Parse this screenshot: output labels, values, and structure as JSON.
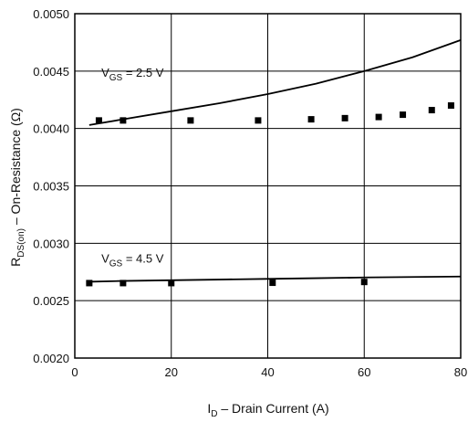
{
  "chart_data": {
    "type": "scatter",
    "xlabel": {
      "main": "I",
      "sub": "D",
      "rest": " – Drain Current (A)"
    },
    "ylabel": {
      "main": "R",
      "sub": "DS(on)",
      "rest": " – On-Resistance (Ω)"
    },
    "xlim": [
      0,
      80
    ],
    "ylim": [
      0.002,
      0.005
    ],
    "x_ticks": [
      "0",
      "20",
      "40",
      "60",
      "80"
    ],
    "y_ticks": [
      "0.0020",
      "0.0025",
      "0.0030",
      "0.0035",
      "0.0040",
      "0.0045",
      "0.0050"
    ],
    "grid": true,
    "annotations": [
      {
        "main": "V",
        "sub": "GS",
        "rest": " = 2.5 V",
        "x": 5.5,
        "y": 0.00445
      },
      {
        "main": "V",
        "sub": "GS",
        "rest": " = 4.5 V",
        "x": 5.5,
        "y": 0.00283
      }
    ],
    "series": [
      {
        "style": "line",
        "x": [
          3,
          10,
          20,
          30,
          40,
          50,
          60,
          70,
          80
        ],
        "y": [
          0.00403,
          0.00408,
          0.00415,
          0.00422,
          0.0043,
          0.00439,
          0.0045,
          0.00462,
          0.00477
        ]
      },
      {
        "style": "markers",
        "x": [
          5,
          10,
          24,
          38,
          49,
          56,
          63,
          68,
          74,
          78
        ],
        "y": [
          0.00407,
          0.00407,
          0.00407,
          0.00407,
          0.00408,
          0.00409,
          0.0041,
          0.00412,
          0.00416,
          0.0042
        ]
      },
      {
        "style": "line",
        "x": [
          3,
          10,
          20,
          30,
          40,
          50,
          60,
          70,
          80
        ],
        "y": [
          0.002665,
          0.002672,
          0.002678,
          0.002684,
          0.00269,
          0.002696,
          0.002702,
          0.002706,
          0.00271
        ]
      },
      {
        "style": "markers",
        "x": [
          3,
          10,
          20,
          41,
          60
        ],
        "y": [
          0.002653,
          0.002653,
          0.002653,
          0.002656,
          0.002663
        ]
      }
    ]
  }
}
